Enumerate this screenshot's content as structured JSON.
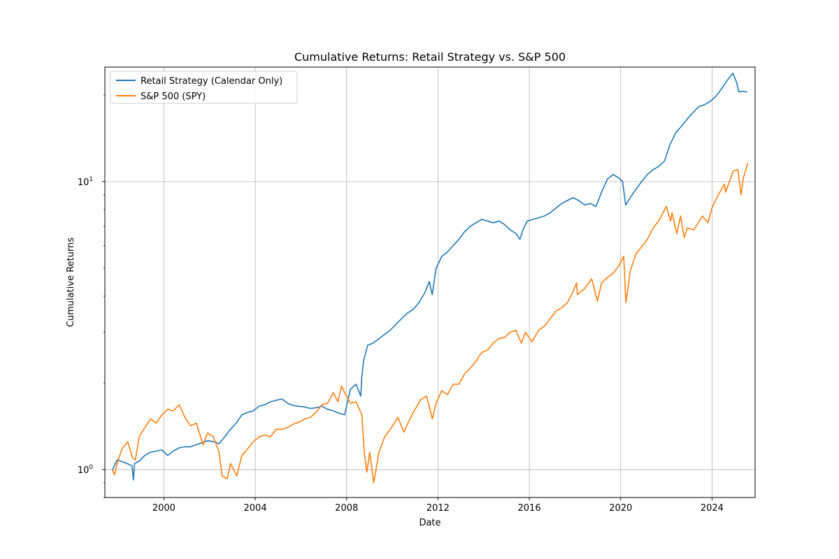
{
  "chart_data": {
    "type": "line",
    "title": "Cumulative Returns: Retail Strategy vs. S&P 500",
    "xlabel": "Date",
    "ylabel": "Cumulative Returns",
    "y_scale": "log",
    "x_range": [
      "1997-06-01",
      "2025-11-20"
    ],
    "ylim": [
      0.8,
      25
    ],
    "x_ticks": [
      {
        "value": "2000-01-01",
        "label": "2000"
      },
      {
        "value": "2004-01-01",
        "label": "2004"
      },
      {
        "value": "2008-01-01",
        "label": "2008"
      },
      {
        "value": "2012-01-01",
        "label": "2012"
      },
      {
        "value": "2016-01-01",
        "label": "2016"
      },
      {
        "value": "2020-01-01",
        "label": "2020"
      },
      {
        "value": "2024-01-01",
        "label": "2024"
      }
    ],
    "y_ticks": [
      {
        "value": 1,
        "label": "10",
        "exponent": "0"
      },
      {
        "value": 10,
        "label": "10",
        "exponent": "1"
      }
    ],
    "grid": true,
    "legend_position": "upper-left",
    "series": [
      {
        "name": "Retail Strategy (Calendar Only)",
        "color": "#1f77b4",
        "points": [
          [
            "1997-10-01",
            1.0
          ],
          [
            "1997-12-15",
            1.08
          ],
          [
            "1998-04-01",
            1.06
          ],
          [
            "1998-07-01",
            1.04
          ],
          [
            "1998-08-10",
            1.03
          ],
          [
            "1998-09-01",
            0.92
          ],
          [
            "1998-09-20",
            1.05
          ],
          [
            "1998-12-01",
            1.07
          ],
          [
            "1999-03-01",
            1.12
          ],
          [
            "1999-06-01",
            1.15
          ],
          [
            "1999-09-01",
            1.16
          ],
          [
            "1999-12-01",
            1.17
          ],
          [
            "2000-03-01",
            1.12
          ],
          [
            "2000-06-01",
            1.16
          ],
          [
            "2000-09-01",
            1.19
          ],
          [
            "2000-12-01",
            1.2
          ],
          [
            "2001-03-01",
            1.2
          ],
          [
            "2001-06-01",
            1.22
          ],
          [
            "2001-09-01",
            1.24
          ],
          [
            "2001-12-01",
            1.26
          ],
          [
            "2002-03-01",
            1.25
          ],
          [
            "2002-06-01",
            1.23
          ],
          [
            "2002-09-01",
            1.3
          ],
          [
            "2002-12-01",
            1.38
          ],
          [
            "2003-03-01",
            1.45
          ],
          [
            "2003-06-01",
            1.55
          ],
          [
            "2003-09-01",
            1.58
          ],
          [
            "2003-12-01",
            1.6
          ],
          [
            "2004-03-01",
            1.66
          ],
          [
            "2004-06-01",
            1.68
          ],
          [
            "2004-09-01",
            1.72
          ],
          [
            "2004-12-01",
            1.74
          ],
          [
            "2005-03-01",
            1.76
          ],
          [
            "2005-06-01",
            1.7
          ],
          [
            "2005-09-01",
            1.67
          ],
          [
            "2005-12-01",
            1.66
          ],
          [
            "2006-03-01",
            1.65
          ],
          [
            "2006-06-01",
            1.63
          ],
          [
            "2006-09-01",
            1.64
          ],
          [
            "2006-12-01",
            1.66
          ],
          [
            "2007-03-01",
            1.62
          ],
          [
            "2007-06-01",
            1.6
          ],
          [
            "2007-09-01",
            1.57
          ],
          [
            "2007-12-01",
            1.55
          ],
          [
            "2008-01-15",
            1.72
          ],
          [
            "2008-03-01",
            1.9
          ],
          [
            "2008-06-01",
            1.98
          ],
          [
            "2008-08-15",
            1.8
          ],
          [
            "2008-09-01",
            2.1
          ],
          [
            "2008-10-01",
            2.4
          ],
          [
            "2008-12-01",
            2.7
          ],
          [
            "2009-03-01",
            2.75
          ],
          [
            "2009-06-01",
            2.85
          ],
          [
            "2009-09-01",
            2.95
          ],
          [
            "2009-12-01",
            3.05
          ],
          [
            "2010-03-01",
            3.2
          ],
          [
            "2010-06-01",
            3.35
          ],
          [
            "2010-09-01",
            3.5
          ],
          [
            "2010-12-01",
            3.6
          ],
          [
            "2011-03-01",
            3.8
          ],
          [
            "2011-06-01",
            4.1
          ],
          [
            "2011-08-15",
            4.5
          ],
          [
            "2011-10-01",
            4.05
          ],
          [
            "2011-12-01",
            5.0
          ],
          [
            "2012-03-01",
            5.5
          ],
          [
            "2012-06-01",
            5.7
          ],
          [
            "2012-09-01",
            6.0
          ],
          [
            "2012-12-01",
            6.3
          ],
          [
            "2013-03-01",
            6.7
          ],
          [
            "2013-06-01",
            7.0
          ],
          [
            "2013-09-01",
            7.2
          ],
          [
            "2013-12-01",
            7.4
          ],
          [
            "2014-03-01",
            7.3
          ],
          [
            "2014-06-01",
            7.2
          ],
          [
            "2014-09-01",
            7.3
          ],
          [
            "2014-12-01",
            7.1
          ],
          [
            "2015-03-01",
            6.8
          ],
          [
            "2015-06-01",
            6.6
          ],
          [
            "2015-08-01",
            6.3
          ],
          [
            "2015-10-01",
            6.9
          ],
          [
            "2015-12-01",
            7.3
          ],
          [
            "2016-03-01",
            7.4
          ],
          [
            "2016-06-01",
            7.5
          ],
          [
            "2016-09-01",
            7.6
          ],
          [
            "2016-12-01",
            7.8
          ],
          [
            "2017-03-01",
            8.1
          ],
          [
            "2017-06-01",
            8.4
          ],
          [
            "2017-09-01",
            8.6
          ],
          [
            "2017-12-01",
            8.8
          ],
          [
            "2018-03-01",
            8.6
          ],
          [
            "2018-06-01",
            8.3
          ],
          [
            "2018-09-01",
            8.4
          ],
          [
            "2018-12-01",
            8.2
          ],
          [
            "2019-03-01",
            9.2
          ],
          [
            "2019-06-01",
            10.2
          ],
          [
            "2019-09-01",
            10.6
          ],
          [
            "2019-12-01",
            10.3
          ],
          [
            "2020-02-01",
            10.0
          ],
          [
            "2020-03-20",
            8.3
          ],
          [
            "2020-06-01",
            8.8
          ],
          [
            "2020-09-01",
            9.4
          ],
          [
            "2020-12-01",
            10.0
          ],
          [
            "2021-03-01",
            10.6
          ],
          [
            "2021-06-01",
            11.0
          ],
          [
            "2021-09-01",
            11.3
          ],
          [
            "2021-12-01",
            11.8
          ],
          [
            "2022-03-01",
            13.5
          ],
          [
            "2022-06-01",
            14.8
          ],
          [
            "2022-09-01",
            15.6
          ],
          [
            "2022-12-01",
            16.5
          ],
          [
            "2023-03-01",
            17.4
          ],
          [
            "2023-06-01",
            18.2
          ],
          [
            "2023-09-01",
            18.5
          ],
          [
            "2023-12-01",
            19.0
          ],
          [
            "2024-03-01",
            19.8
          ],
          [
            "2024-06-01",
            21.0
          ],
          [
            "2024-09-01",
            22.5
          ],
          [
            "2024-12-01",
            23.8
          ],
          [
            "2025-02-01",
            22.0
          ],
          [
            "2025-03-01",
            20.5
          ],
          [
            "2025-05-01",
            20.6
          ],
          [
            "2025-07-15",
            20.5
          ]
        ]
      },
      {
        "name": "S&P 500 (SPY)",
        "color": "#ff7f0e",
        "points": [
          [
            "1997-10-01",
            1.0
          ],
          [
            "1997-11-01",
            0.96
          ],
          [
            "1997-12-15",
            1.05
          ],
          [
            "1998-03-01",
            1.18
          ],
          [
            "1998-06-01",
            1.25
          ],
          [
            "1998-08-15",
            1.1
          ],
          [
            "1998-10-01",
            1.08
          ],
          [
            "1998-12-01",
            1.3
          ],
          [
            "1999-03-01",
            1.4
          ],
          [
            "1999-06-01",
            1.5
          ],
          [
            "1999-09-01",
            1.45
          ],
          [
            "1999-12-01",
            1.55
          ],
          [
            "2000-03-01",
            1.62
          ],
          [
            "2000-06-01",
            1.6
          ],
          [
            "2000-09-01",
            1.68
          ],
          [
            "2000-12-01",
            1.52
          ],
          [
            "2001-03-01",
            1.42
          ],
          [
            "2001-06-01",
            1.45
          ],
          [
            "2001-09-20",
            1.22
          ],
          [
            "2001-12-01",
            1.34
          ],
          [
            "2002-03-01",
            1.3
          ],
          [
            "2002-06-01",
            1.15
          ],
          [
            "2002-07-20",
            0.95
          ],
          [
            "2002-10-10",
            0.93
          ],
          [
            "2002-12-01",
            1.05
          ],
          [
            "2003-03-10",
            0.95
          ],
          [
            "2003-06-01",
            1.12
          ],
          [
            "2003-09-01",
            1.18
          ],
          [
            "2003-12-01",
            1.25
          ],
          [
            "2004-03-01",
            1.3
          ],
          [
            "2004-06-01",
            1.32
          ],
          [
            "2004-09-01",
            1.3
          ],
          [
            "2004-12-01",
            1.38
          ],
          [
            "2005-03-01",
            1.38
          ],
          [
            "2005-06-01",
            1.4
          ],
          [
            "2005-09-01",
            1.44
          ],
          [
            "2005-12-01",
            1.46
          ],
          [
            "2006-03-01",
            1.5
          ],
          [
            "2006-06-01",
            1.52
          ],
          [
            "2006-09-01",
            1.58
          ],
          [
            "2006-12-01",
            1.68
          ],
          [
            "2007-03-01",
            1.7
          ],
          [
            "2007-06-01",
            1.85
          ],
          [
            "2007-08-15",
            1.72
          ],
          [
            "2007-10-10",
            1.95
          ],
          [
            "2007-12-01",
            1.85
          ],
          [
            "2008-03-01",
            1.7
          ],
          [
            "2008-06-01",
            1.72
          ],
          [
            "2008-09-01",
            1.55
          ],
          [
            "2008-10-10",
            1.15
          ],
          [
            "2008-11-20",
            0.98
          ],
          [
            "2009-01-05",
            1.15
          ],
          [
            "2009-03-09",
            0.9
          ],
          [
            "2009-06-01",
            1.15
          ],
          [
            "2009-09-01",
            1.3
          ],
          [
            "2009-12-01",
            1.38
          ],
          [
            "2010-04-01",
            1.52
          ],
          [
            "2010-07-01",
            1.35
          ],
          [
            "2010-12-01",
            1.58
          ],
          [
            "2011-04-01",
            1.75
          ],
          [
            "2011-07-01",
            1.8
          ],
          [
            "2011-10-03",
            1.5
          ],
          [
            "2011-12-01",
            1.7
          ],
          [
            "2012-03-01",
            1.88
          ],
          [
            "2012-06-01",
            1.82
          ],
          [
            "2012-09-01",
            1.98
          ],
          [
            "2012-12-01",
            1.98
          ],
          [
            "2013-03-01",
            2.15
          ],
          [
            "2013-06-01",
            2.25
          ],
          [
            "2013-09-01",
            2.38
          ],
          [
            "2013-12-01",
            2.55
          ],
          [
            "2014-03-01",
            2.6
          ],
          [
            "2014-06-01",
            2.75
          ],
          [
            "2014-09-01",
            2.85
          ],
          [
            "2014-12-01",
            2.88
          ],
          [
            "2015-03-01",
            3.0
          ],
          [
            "2015-06-01",
            3.05
          ],
          [
            "2015-08-25",
            2.75
          ],
          [
            "2015-11-01",
            3.0
          ],
          [
            "2016-02-10",
            2.78
          ],
          [
            "2016-06-01",
            3.05
          ],
          [
            "2016-09-01",
            3.15
          ],
          [
            "2016-12-01",
            3.35
          ],
          [
            "2017-03-01",
            3.55
          ],
          [
            "2017-06-01",
            3.65
          ],
          [
            "2017-09-01",
            3.8
          ],
          [
            "2017-12-01",
            4.15
          ],
          [
            "2018-01-25",
            4.45
          ],
          [
            "2018-02-08",
            4.05
          ],
          [
            "2018-06-01",
            4.25
          ],
          [
            "2018-09-25",
            4.6
          ],
          [
            "2018-12-24",
            3.85
          ],
          [
            "2019-03-01",
            4.45
          ],
          [
            "2019-06-01",
            4.65
          ],
          [
            "2019-09-01",
            4.8
          ],
          [
            "2019-12-01",
            5.1
          ],
          [
            "2020-02-19",
            5.5
          ],
          [
            "2020-03-23",
            3.8
          ],
          [
            "2020-06-01",
            4.9
          ],
          [
            "2020-09-01",
            5.6
          ],
          [
            "2020-12-01",
            5.95
          ],
          [
            "2021-03-01",
            6.3
          ],
          [
            "2021-06-01",
            6.9
          ],
          [
            "2021-09-01",
            7.3
          ],
          [
            "2021-12-31",
            8.2
          ],
          [
            "2022-03-08",
            7.3
          ],
          [
            "2022-04-01",
            7.8
          ],
          [
            "2022-06-16",
            6.6
          ],
          [
            "2022-08-15",
            7.6
          ],
          [
            "2022-10-12",
            6.4
          ],
          [
            "2022-12-01",
            6.9
          ],
          [
            "2023-03-13",
            6.8
          ],
          [
            "2023-07-31",
            7.6
          ],
          [
            "2023-10-27",
            7.2
          ],
          [
            "2023-12-29",
            8.1
          ],
          [
            "2024-03-28",
            8.9
          ],
          [
            "2024-07-16",
            9.8
          ],
          [
            "2024-08-05",
            9.2
          ],
          [
            "2024-12-06",
            10.9
          ],
          [
            "2025-02-19",
            11.0
          ],
          [
            "2025-04-08",
            9.0
          ],
          [
            "2025-05-15",
            10.3
          ],
          [
            "2025-07-25",
            11.6
          ]
        ]
      }
    ]
  }
}
